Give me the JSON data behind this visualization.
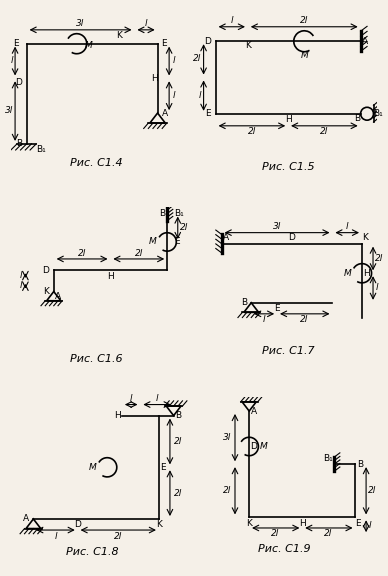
{
  "bg_color": "#f5f0e8",
  "line_color": "#000000",
  "title_fontsize": 8,
  "label_fontsize": 6.5,
  "figures": [
    {
      "name": "Рис. С1.4"
    },
    {
      "name": "Рис. С1.5"
    },
    {
      "name": "Рис. С1.6"
    },
    {
      "name": "Рис. С1.7"
    },
    {
      "name": "Рис. С1.8"
    },
    {
      "name": "Рис. С1.9"
    }
  ]
}
